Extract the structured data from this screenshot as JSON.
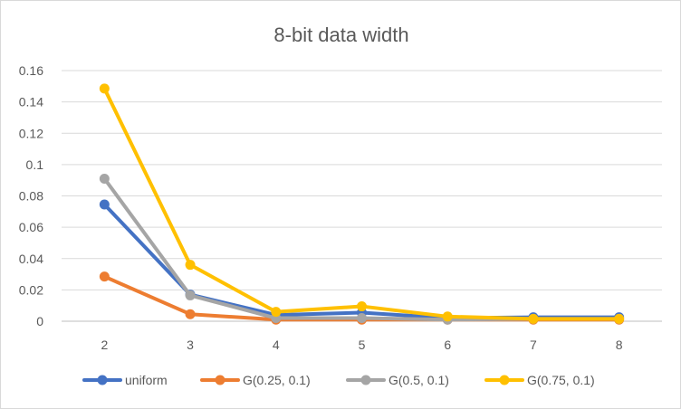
{
  "chart_data": {
    "type": "line",
    "title": "8-bit data width",
    "xlabel": "",
    "ylabel": "",
    "categories": [
      "2",
      "3",
      "4",
      "5",
      "6",
      "7",
      "8"
    ],
    "ylim": [
      0,
      0.16
    ],
    "yticks": [
      "0",
      "0.02",
      "0.04",
      "0.06",
      "0.08",
      "0.1",
      "0.12",
      "0.14",
      "0.16"
    ],
    "grid": true,
    "legend_position": "bottom",
    "series": [
      {
        "name": "uniform",
        "color": "#4472C4",
        "values": [
          0.0745,
          0.017,
          0.004,
          0.0055,
          0.002,
          0.0025,
          0.0025
        ]
      },
      {
        "name": "G(0.25, 0.1)",
        "color": "#ED7D31",
        "values": [
          0.0285,
          0.0045,
          0.001,
          0.001,
          0.001,
          0.001,
          0.001
        ]
      },
      {
        "name": "G(0.5, 0.1)",
        "color": "#A5A5A5",
        "values": [
          0.091,
          0.0165,
          0.002,
          0.002,
          0.001,
          0.0015,
          0.0015
        ]
      },
      {
        "name": "G(0.75, 0.1)",
        "color": "#FFC000",
        "values": [
          0.1485,
          0.036,
          0.006,
          0.0095,
          0.003,
          0.0015,
          0.0015
        ]
      }
    ]
  }
}
